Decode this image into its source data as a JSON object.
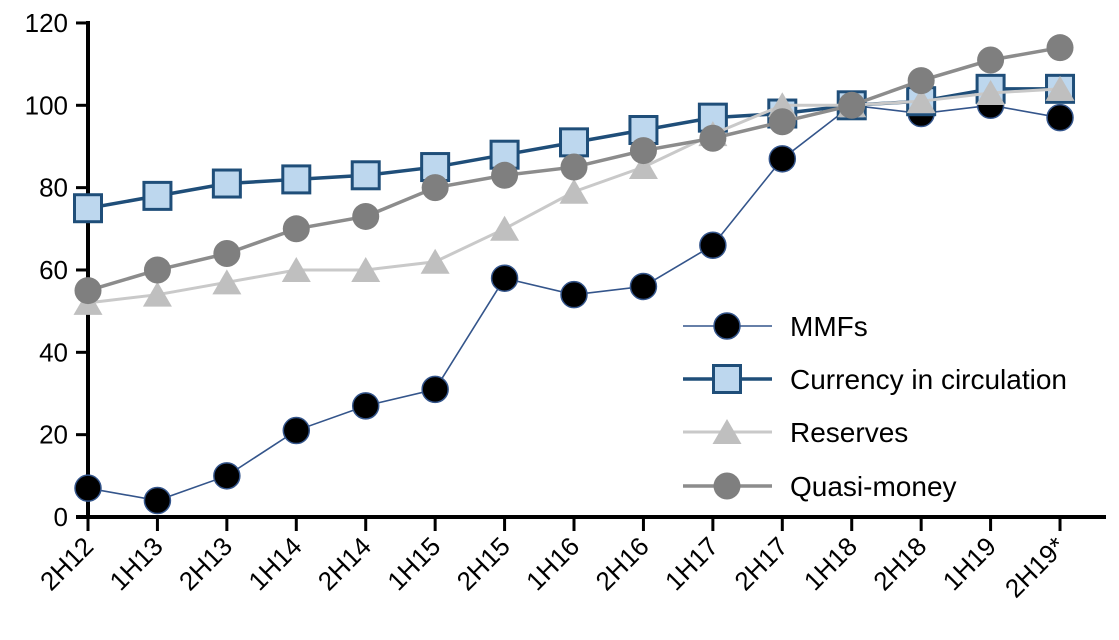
{
  "chart_data": {
    "type": "line",
    "title": "",
    "xlabel": "",
    "ylabel": "",
    "ylim": [
      0,
      120
    ],
    "yticks": [
      0,
      20,
      40,
      60,
      80,
      100,
      120
    ],
    "grid": false,
    "legend_position": "inside-right",
    "categories": [
      "2H12",
      "1H13",
      "2H13",
      "1H14",
      "2H14",
      "1H15",
      "2H15",
      "1H16",
      "2H16",
      "1H17",
      "2H17",
      "1H18",
      "2H18",
      "1H19",
      "2H19*"
    ],
    "series": [
      {
        "name": "MMFs",
        "marker": "circle",
        "marker_fill": "#000000",
        "marker_stroke": "#34558B",
        "marker_stroke_width": 1.5,
        "marker_size": 26,
        "line_color": "#34558B",
        "line_width": 1.6,
        "values": [
          7,
          4,
          10,
          21,
          27,
          31,
          58,
          54,
          56,
          66,
          87,
          100,
          98,
          100,
          97
        ]
      },
      {
        "name": "Currency in circulation",
        "marker": "square",
        "marker_fill": "#BDD7EE",
        "marker_stroke": "#1F4E79",
        "marker_stroke_width": 3,
        "marker_size": 27,
        "line_color": "#1F4E79",
        "line_width": 3.5,
        "values": [
          75,
          78,
          81,
          82,
          83,
          85,
          88,
          91,
          94,
          97,
          98,
          100,
          101,
          104,
          104
        ]
      },
      {
        "name": "Reserves",
        "marker": "triangle",
        "marker_fill": "#BFBFBF",
        "marker_stroke": "none",
        "marker_stroke_width": 0,
        "marker_size": 29,
        "line_color": "#C9C9C9",
        "line_width": 3,
        "values": [
          52,
          54,
          57,
          60,
          60,
          62,
          70,
          79,
          85,
          93,
          100,
          100,
          101,
          103,
          104
        ]
      },
      {
        "name": "Quasi-money",
        "marker": "circle",
        "marker_fill": "#7F7F7F",
        "marker_stroke": "none",
        "marker_stroke_width": 0,
        "marker_size": 27,
        "line_color": "#8C8C8C",
        "line_width": 3.5,
        "values": [
          55,
          60,
          64,
          70,
          73,
          80,
          83,
          85,
          89,
          92,
          96,
          100,
          106,
          111,
          114
        ]
      }
    ],
    "axis_color": "#000000",
    "text_color": "#000000"
  }
}
